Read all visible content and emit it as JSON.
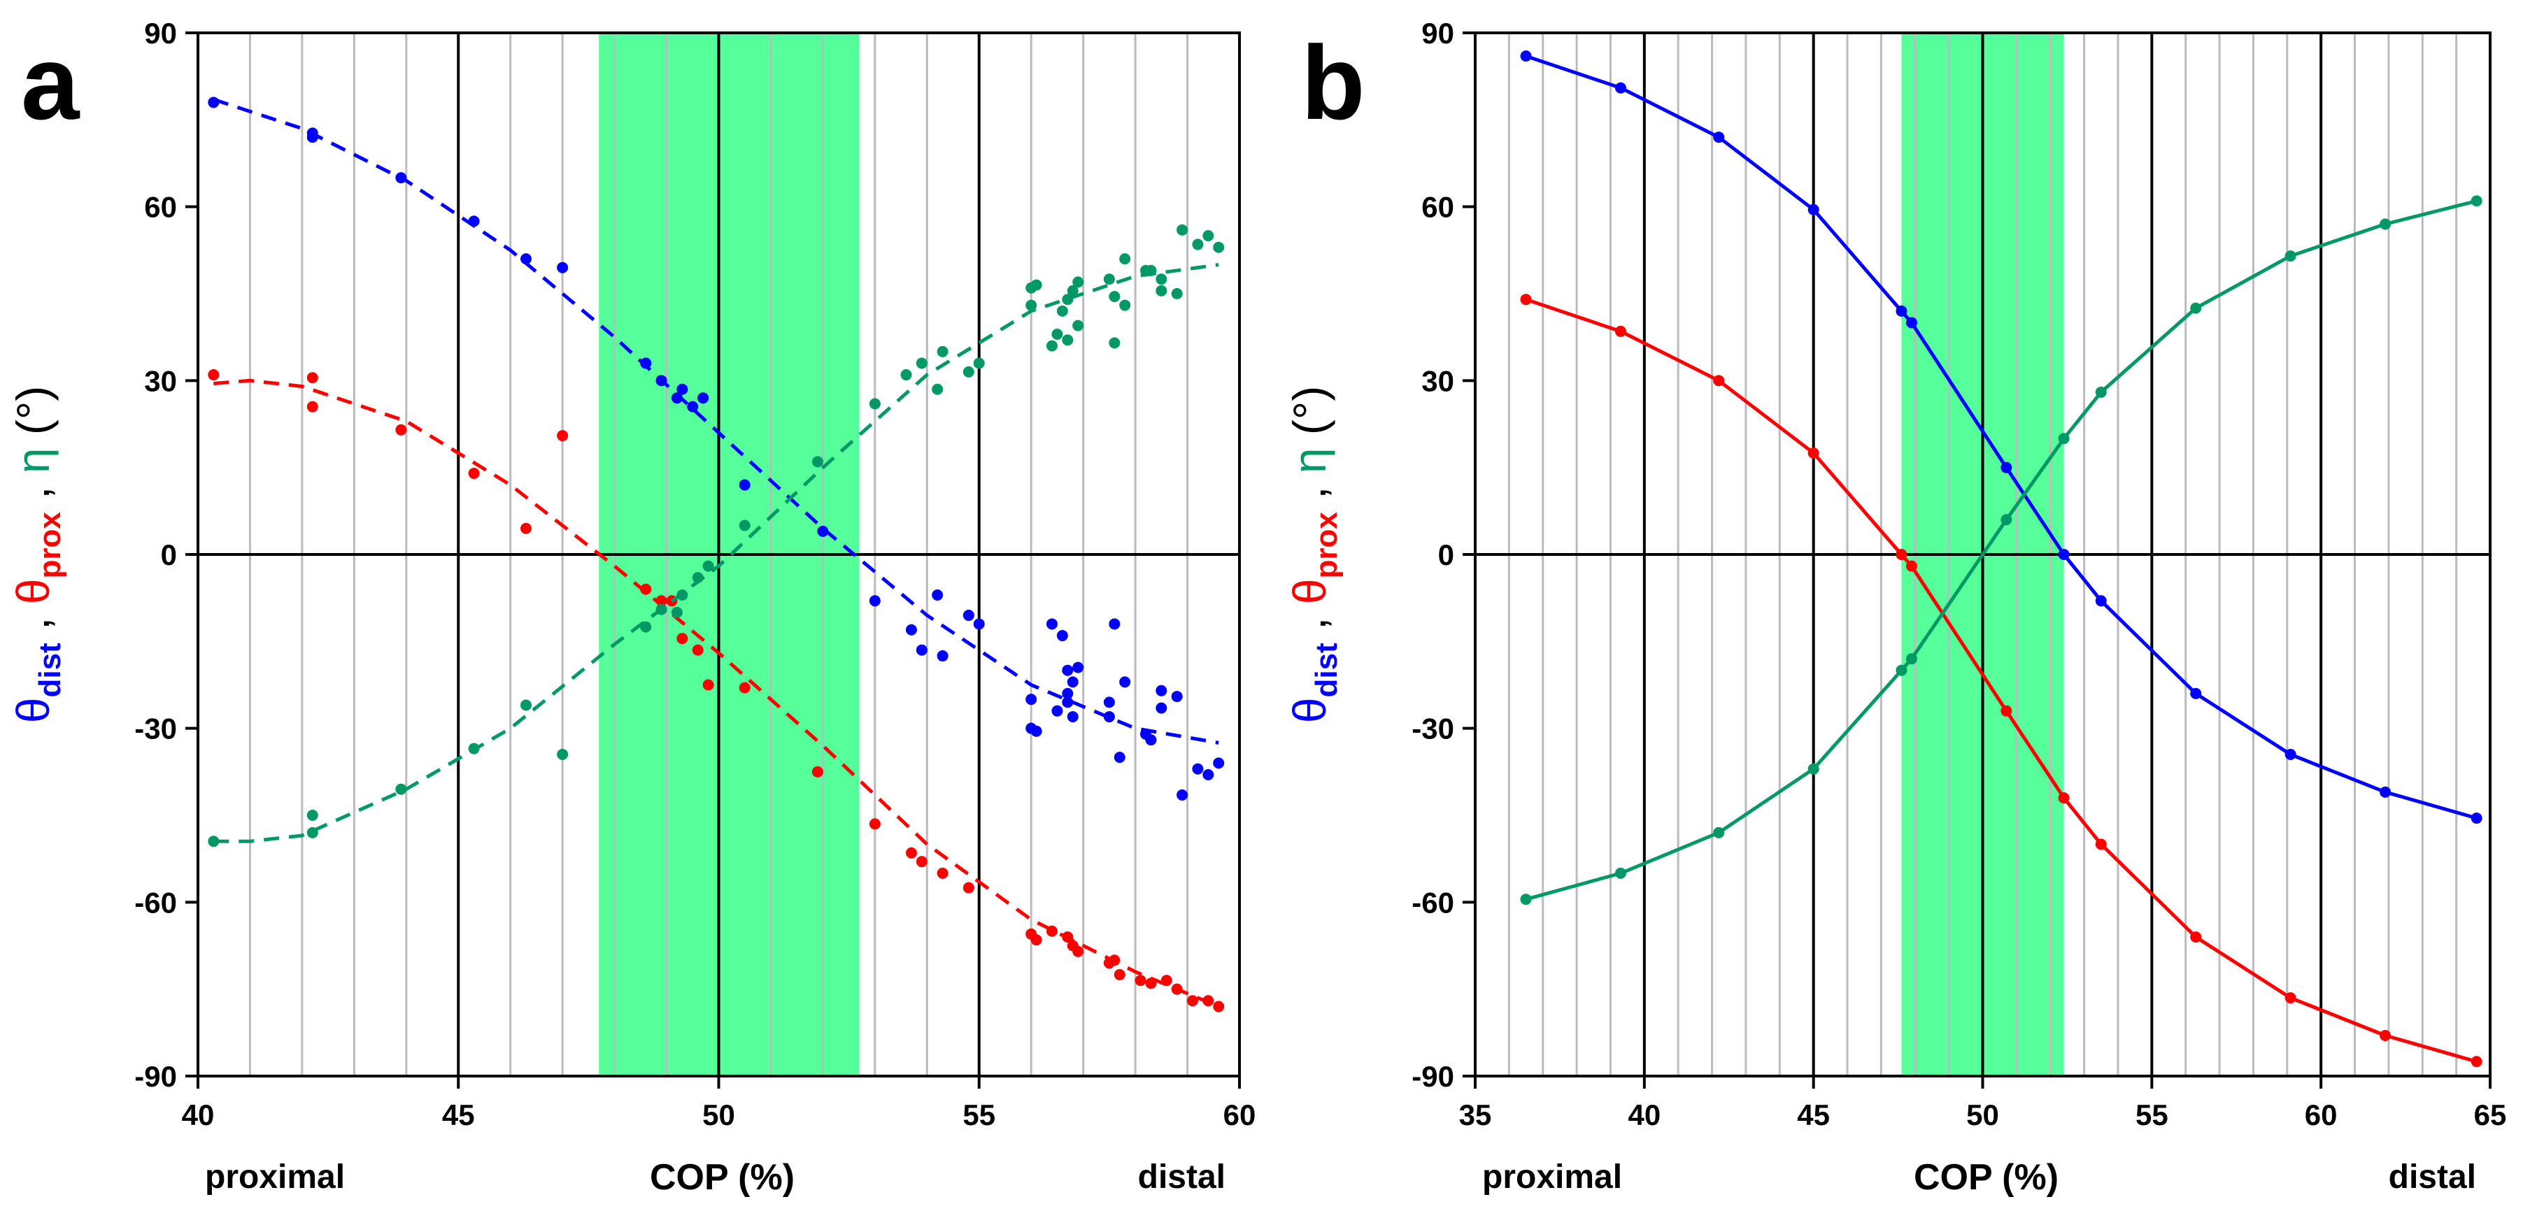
{
  "chart_data": [
    {
      "panel": "a",
      "type": "scatter",
      "xlabel": "COP (%)",
      "xlabel_left": "proximal",
      "xlabel_right": "distal",
      "ylabel_parts": [
        {
          "symbol": "θ",
          "sub": "dist",
          "color": "#0000ff"
        },
        {
          "symbol": "θ",
          "sub": "prox",
          "color": "#ff0000"
        },
        {
          "symbol": "η",
          "sub": "",
          "color": "#009966"
        }
      ],
      "ylabel_suffix": "(°)",
      "xlim": [
        40,
        60
      ],
      "ylim": [
        -90,
        90
      ],
      "xticks": [
        40,
        45,
        50,
        55,
        60
      ],
      "yticks": [
        90,
        60,
        30,
        0,
        -30,
        -60,
        -90
      ],
      "minor_gridlines_x": [
        41,
        42,
        43,
        44,
        46,
        47,
        48,
        49,
        51,
        52,
        53,
        54,
        56,
        57,
        58,
        59
      ],
      "shaded_band": [
        47.7,
        52.7
      ],
      "band_color": "#55ff99",
      "series": [
        {
          "name": "θdist",
          "color": "#0000ff",
          "fit": [
            [
              40.3,
              78.5
            ],
            [
              42,
              73.5
            ],
            [
              44,
              64.5
            ],
            [
              46,
              52.5
            ],
            [
              48,
              37.5
            ],
            [
              50,
              21
            ],
            [
              52,
              4.5
            ],
            [
              54,
              -10.5
            ],
            [
              56,
              -22.5
            ],
            [
              58,
              -30
            ],
            [
              59.6,
              -32.5
            ]
          ],
          "points": [
            [
              40.3,
              78
            ],
            [
              42.2,
              72
            ],
            [
              42.2,
              72.7
            ],
            [
              43.9,
              65
            ],
            [
              45.3,
              57.5
            ],
            [
              46.3,
              51
            ],
            [
              47,
              49.5
            ],
            [
              48.6,
              33
            ],
            [
              48.9,
              30
            ],
            [
              49.2,
              27
            ],
            [
              49.3,
              28.5
            ],
            [
              49.5,
              25.5
            ],
            [
              49.7,
              27
            ],
            [
              50.5,
              12
            ],
            [
              52,
              4
            ],
            [
              53,
              -8
            ],
            [
              53.7,
              -13
            ],
            [
              53.9,
              -16.5
            ],
            [
              54.2,
              -7
            ],
            [
              54.3,
              -17.5
            ],
            [
              54.8,
              -10.5
            ],
            [
              55,
              -12
            ],
            [
              56,
              -25
            ],
            [
              56,
              -30
            ],
            [
              56.1,
              -30.5
            ],
            [
              56.4,
              -12
            ],
            [
              56.5,
              -27
            ],
            [
              56.6,
              -14
            ],
            [
              56.7,
              -20
            ],
            [
              56.7,
              -24
            ],
            [
              56.7,
              -25.5
            ],
            [
              56.8,
              -28
            ],
            [
              56.8,
              -22
            ],
            [
              56.9,
              -19.5
            ],
            [
              57.5,
              -28
            ],
            [
              57.5,
              -25.5
            ],
            [
              57.6,
              -12
            ],
            [
              57.7,
              -35
            ],
            [
              57.8,
              -22
            ],
            [
              58.2,
              -31
            ],
            [
              58.3,
              -32
            ],
            [
              58.5,
              -23.5
            ],
            [
              58.5,
              -26.5
            ],
            [
              58.8,
              -24.5
            ],
            [
              58.9,
              -41.5
            ],
            [
              59.2,
              -37
            ],
            [
              59.4,
              -38
            ],
            [
              59.6,
              -36
            ]
          ]
        },
        {
          "name": "θprox",
          "color": "#ff0000",
          "fit": [
            [
              40.3,
              29.5
            ],
            [
              41,
              30
            ],
            [
              42,
              29
            ],
            [
              44,
              23
            ],
            [
              46,
              12
            ],
            [
              48,
              -2
            ],
            [
              50,
              -17
            ],
            [
              52,
              -33
            ],
            [
              54,
              -50
            ],
            [
              56,
              -63
            ],
            [
              58,
              -72
            ],
            [
              59.6,
              -78
            ]
          ],
          "points": [
            [
              40.3,
              31
            ],
            [
              42.2,
              30.5
            ],
            [
              42.2,
              25.5
            ],
            [
              43.9,
              21.5
            ],
            [
              45.3,
              14
            ],
            [
              46.3,
              4.5
            ],
            [
              47,
              20.5
            ],
            [
              48.6,
              -6
            ],
            [
              48.9,
              -8
            ],
            [
              49.1,
              -8
            ],
            [
              49.3,
              -14.5
            ],
            [
              49.6,
              -16.5
            ],
            [
              49.8,
              -22.5
            ],
            [
              50.5,
              -23
            ],
            [
              51.9,
              -37.5
            ],
            [
              53,
              -46.5
            ],
            [
              53.7,
              -51.5
            ],
            [
              53.9,
              -53
            ],
            [
              54.3,
              -55
            ],
            [
              54.8,
              -57.5
            ],
            [
              56,
              -65.5
            ],
            [
              56.1,
              -66.5
            ],
            [
              56.4,
              -65
            ],
            [
              56.7,
              -66
            ],
            [
              56.8,
              -67.5
            ],
            [
              56.9,
              -68.5
            ],
            [
              57.5,
              -70.5
            ],
            [
              57.6,
              -70
            ],
            [
              57.7,
              -72.5
            ],
            [
              58.1,
              -73.5
            ],
            [
              58.3,
              -74
            ],
            [
              58.6,
              -73.5
            ],
            [
              58.8,
              -75
            ],
            [
              59.1,
              -77
            ],
            [
              59.4,
              -77
            ],
            [
              59.6,
              -78
            ]
          ]
        },
        {
          "name": "η",
          "color": "#009966",
          "fit": [
            [
              40.3,
              -49.5
            ],
            [
              41,
              -49.5
            ],
            [
              42,
              -48.5
            ],
            [
              44,
              -40.5
            ],
            [
              46,
              -30
            ],
            [
              48,
              -15.5
            ],
            [
              50,
              -2
            ],
            [
              52,
              15
            ],
            [
              54,
              31
            ],
            [
              56,
              42
            ],
            [
              58,
              48
            ],
            [
              59.6,
              50
            ]
          ],
          "points": [
            [
              40.3,
              -49.5
            ],
            [
              42.2,
              -45
            ],
            [
              42.2,
              -48
            ],
            [
              43.9,
              -40.5
            ],
            [
              45.3,
              -33.5
            ],
            [
              46.3,
              -26
            ],
            [
              47,
              -34.5
            ],
            [
              48.6,
              -12.5
            ],
            [
              48.9,
              -9.5
            ],
            [
              49.2,
              -10
            ],
            [
              49.3,
              -7
            ],
            [
              49.6,
              -4
            ],
            [
              49.8,
              -2
            ],
            [
              50.5,
              5
            ],
            [
              51.9,
              16
            ],
            [
              53,
              26
            ],
            [
              53.6,
              31
            ],
            [
              53.9,
              33
            ],
            [
              54.2,
              28.5
            ],
            [
              54.3,
              35
            ],
            [
              54.8,
              31.5
            ],
            [
              55,
              33
            ],
            [
              56,
              46
            ],
            [
              56.1,
              46.5
            ],
            [
              56,
              43
            ],
            [
              56.4,
              36
            ],
            [
              56.5,
              38
            ],
            [
              56.6,
              42
            ],
            [
              56.7,
              44
            ],
            [
              56.7,
              37
            ],
            [
              56.8,
              45.5
            ],
            [
              56.9,
              47
            ],
            [
              56.9,
              39.5
            ],
            [
              57.5,
              47.5
            ],
            [
              57.6,
              36.5
            ],
            [
              57.6,
              44.5
            ],
            [
              57.8,
              51
            ],
            [
              57.8,
              43
            ],
            [
              58.2,
              49
            ],
            [
              58.3,
              49
            ],
            [
              58.5,
              45.5
            ],
            [
              58.5,
              47.5
            ],
            [
              58.8,
              45
            ],
            [
              58.9,
              56
            ],
            [
              59.2,
              53.5
            ],
            [
              59.4,
              55
            ],
            [
              59.6,
              53
            ]
          ]
        }
      ]
    },
    {
      "panel": "b",
      "type": "line",
      "xlabel": "COP (%)",
      "xlabel_left": "proximal",
      "xlabel_right": "distal",
      "ylabel_parts": [
        {
          "symbol": "θ",
          "sub": "dist",
          "color": "#0000ff"
        },
        {
          "symbol": "θ",
          "sub": "prox",
          "color": "#ff0000"
        },
        {
          "symbol": "η",
          "sub": "",
          "color": "#009966"
        }
      ],
      "ylabel_suffix": "(°)",
      "xlim": [
        35,
        65
      ],
      "ylim": [
        -90,
        90
      ],
      "xticks": [
        35,
        40,
        45,
        50,
        55,
        60,
        65
      ],
      "yticks": [
        90,
        60,
        30,
        0,
        -30,
        -60,
        -90
      ],
      "minor_gridlines_x": [
        36,
        37,
        38,
        39,
        41,
        42,
        43,
        44,
        46,
        47,
        48,
        49,
        51,
        52,
        53,
        54,
        56,
        57,
        58,
        59,
        61,
        62,
        63,
        64
      ],
      "shaded_band": [
        47.6,
        52.4
      ],
      "band_color": "#55ff99",
      "series": [
        {
          "name": "θdist",
          "color": "#0000ff",
          "points": [
            [
              36.5,
              86
            ],
            [
              39.3,
              80.5
            ],
            [
              42.2,
              72
            ],
            [
              45,
              59.5
            ],
            [
              47.6,
              42
            ],
            [
              47.9,
              40
            ],
            [
              50.7,
              15
            ],
            [
              52.4,
              0
            ],
            [
              53.5,
              -8
            ],
            [
              56.3,
              -24
            ],
            [
              59.1,
              -34.5
            ],
            [
              61.9,
              -41
            ],
            [
              64.6,
              -45.5
            ]
          ]
        },
        {
          "name": "θprox",
          "color": "#ff0000",
          "points": [
            [
              36.5,
              44
            ],
            [
              39.3,
              38.5
            ],
            [
              42.2,
              30
            ],
            [
              45,
              17.5
            ],
            [
              47.6,
              0
            ],
            [
              47.9,
              -2
            ],
            [
              50.7,
              -27
            ],
            [
              52.4,
              -42
            ],
            [
              53.5,
              -50
            ],
            [
              56.3,
              -66
            ],
            [
              59.1,
              -76.5
            ],
            [
              61.9,
              -83
            ],
            [
              64.6,
              -87.5
            ]
          ]
        },
        {
          "name": "η",
          "color": "#009966",
          "points": [
            [
              36.5,
              -59.5
            ],
            [
              39.3,
              -55
            ],
            [
              42.2,
              -48
            ],
            [
              45,
              -37
            ],
            [
              47.6,
              -20
            ],
            [
              47.9,
              -18
            ],
            [
              50.7,
              6
            ],
            [
              52.4,
              20
            ],
            [
              53.5,
              28
            ],
            [
              56.3,
              42.5
            ],
            [
              59.1,
              51.5
            ],
            [
              61.9,
              57
            ],
            [
              64.6,
              61
            ]
          ]
        }
      ]
    }
  ]
}
